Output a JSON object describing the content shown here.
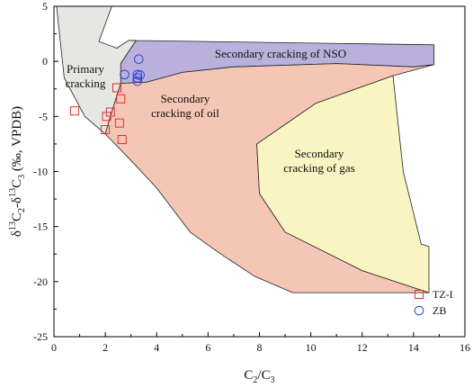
{
  "chart_data": {
    "type": "scatter",
    "xlim": [
      0,
      16
    ],
    "ylim": [
      -25,
      5
    ],
    "x_ticks": [
      0,
      2,
      4,
      6,
      8,
      10,
      12,
      14,
      16
    ],
    "y_ticks": [
      -25,
      -20,
      -15,
      -10,
      -5,
      0,
      5
    ],
    "x_tick_labels": [
      "0",
      "2",
      "4",
      "6",
      "8",
      "10",
      "12",
      "14",
      "16"
    ],
    "y_tick_labels": [
      "-25",
      "-20",
      "-15",
      "-10",
      "-5",
      "0",
      "5"
    ],
    "xlabel": {
      "main": "C",
      "sub1": "2",
      "mid": "/C",
      "sub2": "3"
    },
    "ylabel": {
      "p1": "δ",
      "sup1": "13",
      "p2": "C",
      "sub1": "2",
      "p3": "-δ",
      "sup2": "13",
      "p4": "C",
      "sub2": "3",
      "p5": " (‰, VPDB)"
    },
    "grid": false,
    "legend_position": "bottom-right",
    "regions": [
      {
        "name": "Primary cracking",
        "label_lines": [
          "Primary",
          "cracking"
        ],
        "color": "#e6e6e3",
        "polygon": [
          [
            0.1,
            5.0
          ],
          [
            2.25,
            5.0
          ],
          [
            1.75,
            1.8
          ],
          [
            2.45,
            1.2
          ],
          [
            2.9,
            1.9
          ],
          [
            3.2,
            1.9
          ],
          [
            2.6,
            -0.2
          ],
          [
            2.6,
            -2.0
          ],
          [
            2.2,
            -5.0
          ],
          [
            2.0,
            -6.6
          ],
          [
            1.2,
            -5.0
          ],
          [
            0.4,
            -1.5
          ],
          [
            0.1,
            5.0
          ]
        ]
      },
      {
        "name": "Secondary cracking of NSO",
        "label_lines": [
          "Secondary cracking of NSO"
        ],
        "color": "#b9b1dc",
        "polygon": [
          [
            2.9,
            1.9
          ],
          [
            14.8,
            1.5
          ],
          [
            14.8,
            -0.3
          ],
          [
            14.0,
            -0.5
          ],
          [
            11.0,
            -0.2
          ],
          [
            7.0,
            -0.5
          ],
          [
            5.0,
            -1.0
          ],
          [
            3.6,
            -1.9
          ],
          [
            2.6,
            -2.0
          ],
          [
            2.6,
            -0.2
          ],
          [
            3.2,
            1.9
          ]
        ]
      },
      {
        "name": "Secondary cracking of oil",
        "label_lines": [
          "Secondary",
          "cracking of oil"
        ],
        "color": "#f5c6b5",
        "polygon": [
          [
            2.6,
            -2.0
          ],
          [
            3.6,
            -1.9
          ],
          [
            5.0,
            -1.0
          ],
          [
            7.0,
            -0.5
          ],
          [
            11.0,
            -0.2
          ],
          [
            14.0,
            -0.5
          ],
          [
            14.8,
            -0.3
          ],
          [
            13.2,
            -1.3
          ],
          [
            10.2,
            -3.8
          ],
          [
            7.9,
            -7.5
          ],
          [
            8.0,
            -12.0
          ],
          [
            9.0,
            -15.5
          ],
          [
            12.0,
            -19.0
          ],
          [
            14.6,
            -21.0
          ],
          [
            9.3,
            -21.0
          ],
          [
            7.8,
            -19.5
          ],
          [
            6.5,
            -17.5
          ],
          [
            5.3,
            -15.5
          ],
          [
            4.0,
            -11.5
          ],
          [
            3.0,
            -9.0
          ],
          [
            2.0,
            -6.6
          ],
          [
            2.2,
            -5.0
          ]
        ]
      },
      {
        "name": "Secondary cracking of gas",
        "label_lines": [
          "Secondary",
          "cracking of gas"
        ],
        "color": "#f8f5c2",
        "polygon": [
          [
            13.2,
            -1.3
          ],
          [
            10.2,
            -3.8
          ],
          [
            7.9,
            -7.5
          ],
          [
            8.0,
            -12.0
          ],
          [
            9.0,
            -15.5
          ],
          [
            12.0,
            -19.0
          ],
          [
            14.6,
            -21.0
          ],
          [
            14.6,
            -16.8
          ],
          [
            14.3,
            -16.6
          ],
          [
            13.6,
            -10.0
          ],
          [
            13.2,
            -1.3
          ]
        ]
      }
    ],
    "series": [
      {
        "name": "TZ-I",
        "marker": "square",
        "color": "#e03030",
        "points": [
          [
            0.8,
            -4.5
          ],
          [
            2.0,
            -6.2
          ],
          [
            2.05,
            -5.0
          ],
          [
            2.2,
            -4.6
          ],
          [
            2.45,
            -2.4
          ],
          [
            2.6,
            -3.4
          ],
          [
            2.55,
            -5.6
          ],
          [
            2.65,
            -7.1
          ]
        ]
      },
      {
        "name": "ZB",
        "marker": "circle",
        "color": "#3040d8",
        "points": [
          [
            3.3,
            0.2
          ],
          [
            2.75,
            -1.2
          ],
          [
            3.25,
            -1.2
          ],
          [
            3.25,
            -1.5
          ],
          [
            3.35,
            -1.25
          ],
          [
            3.25,
            -1.8
          ]
        ]
      }
    ]
  }
}
